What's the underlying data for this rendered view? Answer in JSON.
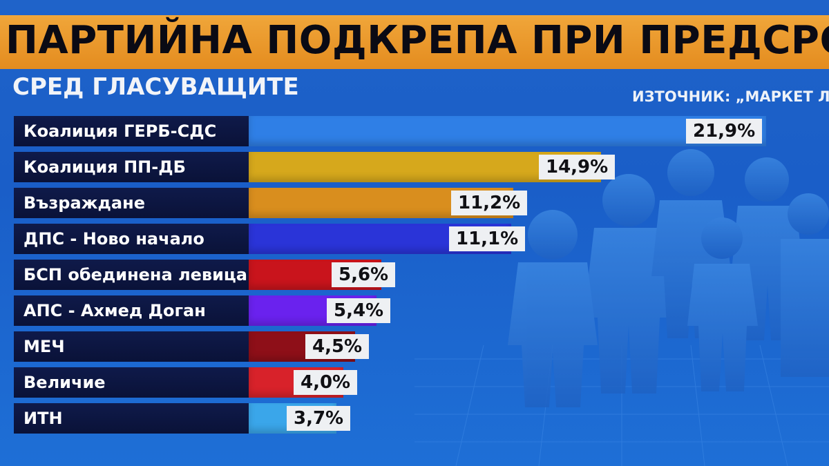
{
  "header": {
    "title": "ПАРТИЙНА ПОДКРЕПА ПРИ ПРЕДСРОЧЕН ВО",
    "subtitle": "СРЕД ГЛАСУВАЩИТЕ",
    "source": "ИЗТОЧНИК: „МАРКЕТ ЛИ"
  },
  "chart_data": {
    "type": "bar",
    "orientation": "horizontal",
    "title": "ПАРТИЙНА ПОДКРЕПА ПРИ ПРЕДСРОЧЕН ВО",
    "subtitle": "СРЕД ГЛАСУВАЩИТЕ",
    "categories": [
      "Коалиция ГЕРБ-СДС",
      "Коалиция ПП-ДБ",
      "Възраждане",
      "ДПС - Ново начало",
      "БСП обединена левица",
      "АПС - Ахмед Доган",
      "МЕЧ",
      "Величие",
      "ИТН"
    ],
    "values": [
      21.9,
      14.9,
      11.2,
      11.1,
      5.6,
      5.4,
      4.5,
      4.0,
      3.7
    ],
    "value_labels": [
      "21,9%",
      "14,9%",
      "11,2%",
      "11,1%",
      "5,6%",
      "5,4%",
      "4,5%",
      "4,0%",
      "3,7%"
    ],
    "colors": [
      "#2f7fe6",
      "#d6a81c",
      "#d98e1e",
      "#2a34d8",
      "#c9141c",
      "#6a22ee",
      "#8e0f18",
      "#d8222a",
      "#3aa6ea"
    ],
    "xlim": [
      0,
      22.5
    ]
  }
}
